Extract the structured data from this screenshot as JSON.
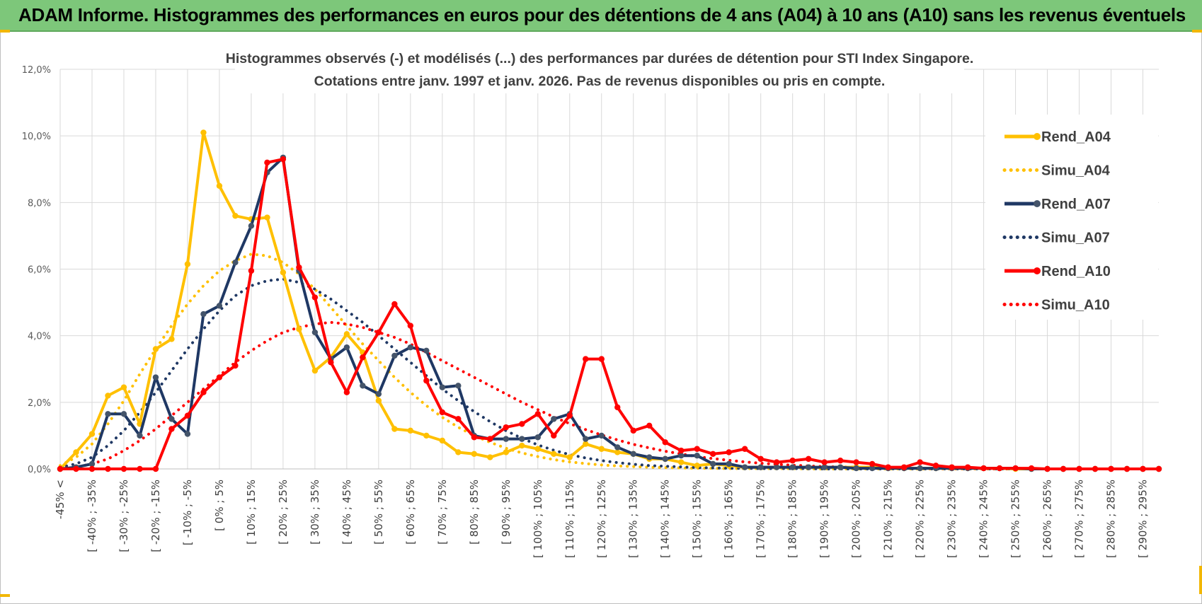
{
  "header": {
    "title": "ADAM Informe. Histogrammes des performances en euros pour des détentions de 4 ans (A04) à 10 ans (A10) sans les revenus éventuels"
  },
  "chart_data": {
    "type": "line",
    "title_line1": "Histogrammes observés (-) et modélisés (...) des performances par durées de détention pour STI Index Singapore.",
    "title_line2": "Cotations entre janv. 1997 et janv. 2026. Pas de revenus disponibles ou pris en compte.",
    "xlabel": "",
    "ylabel": "",
    "ylim": [
      0,
      12
    ],
    "y_ticks": [
      "0,0%",
      "2,0%",
      "4,0%",
      "6,0%",
      "8,0%",
      "10,0%",
      "12,0%"
    ],
    "grid": true,
    "legend_position": "right",
    "x_tick_labels": [
      "-45% <",
      "[ -40% ; -35%",
      "[ -30% ; -25%",
      "[ -20% ; -15%",
      "[ -10% ; -5%",
      "[ 0% ; 5%",
      "[ 10% ; 15%",
      "[ 20% ; 25%",
      "[ 30% ; 35%",
      "[ 40% ; 45%",
      "[ 50% ; 55%",
      "[ 60% ; 65%",
      "[ 70% ; 75%",
      "[ 80% ; 85%",
      "[ 90% ; 95%",
      "[ 100% ; 105%",
      "[ 110% ; 115%",
      "[ 120% ; 125%",
      "[ 130% ; 135%",
      "[ 140% ; 145%",
      "[ 150% ; 155%",
      "[ 160% ; 165%",
      "[ 170% ; 175%",
      "[ 180% ; 185%",
      "[ 190% ; 195%",
      "[ 200% ; 205%",
      "[ 210% ; 215%",
      "[ 220% ; 225%",
      "[ 230% ; 235%",
      "[ 240% ; 245%",
      "[ 250% ; 255%",
      "[ 260% ; 265%",
      "[ 270% ; 275%",
      "[ 280% ; 285%",
      "[ 290% ; 295%"
    ],
    "series": [
      {
        "name": "Rend_A04",
        "color": "#ffc000",
        "style": "solid",
        "markers": true,
        "values": [
          0,
          0.5,
          1.05,
          2.2,
          2.45,
          1.35,
          3.6,
          3.9,
          6.15,
          10.1,
          8.5,
          7.6,
          7.5,
          7.55,
          5.9,
          4.2,
          2.95,
          3.35,
          4.05,
          3.5,
          2.05,
          1.2,
          1.15,
          1.0,
          0.85,
          0.5,
          0.45,
          0.35,
          0.5,
          0.7,
          0.6,
          0.45,
          0.35,
          0.75,
          0.6,
          0.5,
          0.45,
          0.3,
          0.3,
          0.2,
          0.1,
          0.15,
          0.1,
          0.05,
          0.05,
          0.05,
          0.05,
          0.05,
          0.05,
          0.05,
          0.05,
          0.05,
          0.02,
          0.02,
          0.02,
          0.02,
          0.02,
          0.02,
          0.02,
          0.02,
          0,
          0,
          0,
          0,
          0,
          0,
          0,
          0,
          0,
          0
        ]
      },
      {
        "name": "Simu_A04",
        "color": "#ffc000",
        "style": "dotted",
        "markers": false,
        "values": [
          0.1,
          0.35,
          0.75,
          1.35,
          2.05,
          2.85,
          3.6,
          4.3,
          4.95,
          5.5,
          5.95,
          6.25,
          6.45,
          6.4,
          6.2,
          5.85,
          5.4,
          4.85,
          4.3,
          3.75,
          3.25,
          2.75,
          2.3,
          1.9,
          1.55,
          1.25,
          1.0,
          0.8,
          0.62,
          0.48,
          0.37,
          0.28,
          0.21,
          0.16,
          0.12,
          0.09,
          0.07,
          0.05,
          0.04,
          0.03,
          0.02,
          0.02,
          0.01,
          0.01,
          0.01,
          0.01,
          0.01,
          0,
          0,
          0,
          0,
          0,
          0,
          0,
          0,
          0,
          0,
          0,
          0,
          0,
          0,
          0,
          0,
          0,
          0,
          0,
          0,
          0,
          0,
          0
        ]
      },
      {
        "name": "Rend_A07",
        "color": "#1f3864",
        "style": "solid",
        "markers": true,
        "values": [
          0,
          0.05,
          0.15,
          1.65,
          1.65,
          1.0,
          2.75,
          1.5,
          1.05,
          4.65,
          4.9,
          6.2,
          7.3,
          8.9,
          9.35,
          5.95,
          4.1,
          3.3,
          3.65,
          2.5,
          2.25,
          3.4,
          3.65,
          3.55,
          2.45,
          2.5,
          1.0,
          0.9,
          0.9,
          0.9,
          0.95,
          1.5,
          1.65,
          0.9,
          1.0,
          0.65,
          0.45,
          0.35,
          0.3,
          0.4,
          0.4,
          0.15,
          0.15,
          0.05,
          0.05,
          0.05,
          0.05,
          0.05,
          0.05,
          0.05,
          0.02,
          0.02,
          0.02,
          0.02,
          0.02,
          0.02,
          0.02,
          0.02,
          0.02,
          0.02,
          0.02,
          0,
          0,
          0,
          0,
          0,
          0,
          0,
          0,
          0
        ]
      },
      {
        "name": "Simu_A07",
        "color": "#1f3864",
        "style": "dotted",
        "markers": false,
        "values": [
          0.05,
          0.15,
          0.35,
          0.7,
          1.15,
          1.7,
          2.3,
          2.95,
          3.6,
          4.2,
          4.75,
          5.2,
          5.5,
          5.65,
          5.7,
          5.6,
          5.4,
          5.1,
          4.75,
          4.4,
          4.0,
          3.6,
          3.2,
          2.8,
          2.4,
          2.05,
          1.72,
          1.42,
          1.15,
          0.92,
          0.72,
          0.56,
          0.43,
          0.33,
          0.25,
          0.19,
          0.14,
          0.1,
          0.08,
          0.06,
          0.04,
          0.03,
          0.02,
          0.02,
          0.01,
          0.01,
          0.01,
          0.01,
          0,
          0,
          0,
          0,
          0,
          0,
          0,
          0,
          0,
          0,
          0,
          0,
          0,
          0,
          0,
          0,
          0,
          0,
          0,
          0,
          0,
          0
        ]
      },
      {
        "name": "Rend_A10",
        "color": "#ff0000",
        "style": "solid",
        "markers": true,
        "values": [
          0,
          0,
          0,
          0,
          0,
          0,
          0,
          1.2,
          1.6,
          2.3,
          2.75,
          3.1,
          5.95,
          9.2,
          9.3,
          6.05,
          5.15,
          3.2,
          2.3,
          3.35,
          4.1,
          4.95,
          4.3,
          2.65,
          1.7,
          1.5,
          0.95,
          0.9,
          1.25,
          1.35,
          1.65,
          1.0,
          1.6,
          3.3,
          3.3,
          1.85,
          1.15,
          1.3,
          0.8,
          0.55,
          0.6,
          0.45,
          0.5,
          0.6,
          0.3,
          0.2,
          0.25,
          0.3,
          0.2,
          0.25,
          0.2,
          0.15,
          0.05,
          0.05,
          0.2,
          0.1,
          0.05,
          0.05,
          0.02,
          0.02,
          0.02,
          0.02,
          0,
          0,
          0,
          0,
          0,
          0,
          0,
          0
        ]
      },
      {
        "name": "Simu_A10",
        "color": "#ff0000",
        "style": "dotted",
        "markers": false,
        "values": [
          0.02,
          0.05,
          0.15,
          0.3,
          0.55,
          0.85,
          1.2,
          1.6,
          2.0,
          2.4,
          2.8,
          3.2,
          3.55,
          3.85,
          4.1,
          4.25,
          4.35,
          4.4,
          4.35,
          4.25,
          4.1,
          3.95,
          3.75,
          3.5,
          3.25,
          3.0,
          2.75,
          2.5,
          2.25,
          2.0,
          1.78,
          1.56,
          1.36,
          1.18,
          1.02,
          0.87,
          0.74,
          0.63,
          0.53,
          0.45,
          0.37,
          0.31,
          0.26,
          0.21,
          0.17,
          0.14,
          0.11,
          0.09,
          0.07,
          0.06,
          0.05,
          0.04,
          0.03,
          0.02,
          0.02,
          0.01,
          0.01,
          0.01,
          0.01,
          0,
          0,
          0,
          0,
          0,
          0,
          0,
          0,
          0,
          0,
          0
        ]
      }
    ]
  }
}
